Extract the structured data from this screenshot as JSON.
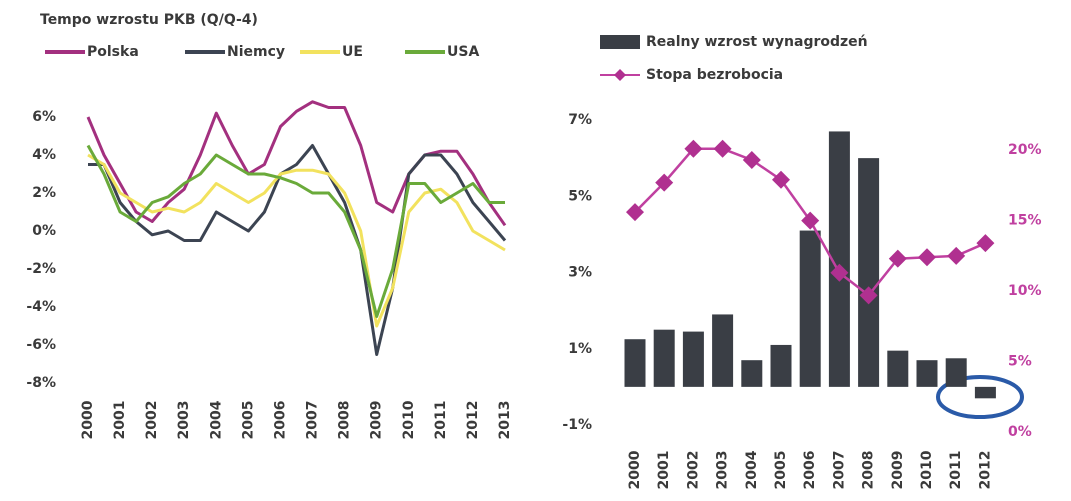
{
  "chart_data": [
    {
      "type": "line",
      "title": "Tempo wzrostu PKB (Q/Q-4)",
      "x": [
        2000,
        2000.5,
        2001,
        2001.5,
        2002,
        2002.5,
        2003,
        2003.5,
        2004,
        2004.5,
        2005,
        2005.5,
        2006,
        2006.5,
        2007,
        2007.5,
        2008,
        2008.5,
        2009,
        2009.5,
        2010,
        2010.5,
        2011,
        2011.5,
        2012,
        2012.5,
        2013
      ],
      "xlim": [
        2000,
        2013
      ],
      "xticks": [
        2000,
        2001,
        2002,
        2003,
        2004,
        2005,
        2006,
        2007,
        2008,
        2009,
        2010,
        2011,
        2012,
        2013
      ],
      "ylim": [
        -8,
        7
      ],
      "yticks": [
        {
          "value": 6,
          "label": "6%"
        },
        {
          "value": 4,
          "label": "4%"
        },
        {
          "value": 2,
          "label": "2%"
        },
        {
          "value": 0,
          "label": "0%"
        },
        {
          "value": -2,
          "label": "-2%"
        },
        {
          "value": -4,
          "label": "-4%"
        },
        {
          "value": -6,
          "label": "-6%"
        },
        {
          "value": -8,
          "label": "-8%"
        }
      ],
      "series": [
        {
          "name": "Polska",
          "color": "#a3307f",
          "values": [
            6,
            4,
            2.5,
            1,
            0.5,
            1.5,
            2.2,
            4,
            6.2,
            4.5,
            3,
            3.5,
            5.5,
            6.3,
            6.8,
            6.5,
            6.5,
            4.5,
            1.5,
            1,
            3,
            4,
            4.2,
            4.2,
            3,
            1.5,
            0.3
          ]
        },
        {
          "name": "Niemcy",
          "color": "#3c4452",
          "values": [
            3.5,
            3.5,
            1.5,
            0.5,
            -0.2,
            0,
            -0.5,
            -0.5,
            1,
            0.5,
            0,
            1,
            3,
            3.5,
            4.5,
            3,
            1.5,
            -1,
            -6.5,
            -3,
            3,
            4,
            4,
            3,
            1.5,
            0.5,
            -0.5
          ]
        },
        {
          "name": "UE",
          "color": "#f2e25e",
          "values": [
            4,
            3.5,
            2,
            1.5,
            1,
            1.2,
            1,
            1.5,
            2.5,
            2,
            1.5,
            2,
            3,
            3.2,
            3.2,
            3,
            2,
            0,
            -5,
            -3,
            1,
            2,
            2.2,
            1.5,
            0,
            -0.5,
            -1
          ]
        },
        {
          "name": "USA",
          "color": "#6aaa3a",
          "values": [
            4.5,
            3,
            1,
            0.5,
            1.5,
            1.8,
            2.5,
            3,
            4,
            3.5,
            3,
            3,
            2.8,
            2.5,
            2,
            2,
            1,
            -1,
            -4.5,
            -2,
            2.5,
            2.5,
            1.5,
            2,
            2.5,
            1.5,
            1.5
          ]
        }
      ]
    },
    {
      "type": "bar",
      "categories": [
        "2000",
        "2001",
        "2002",
        "2003",
        "2004",
        "2005",
        "2006",
        "2007",
        "2008",
        "2009",
        "2010",
        "2011",
        "2012"
      ],
      "ylim": [
        -1,
        7
      ],
      "yticks": [
        {
          "value": 7,
          "label": "7%"
        },
        {
          "value": 5,
          "label": "5%"
        },
        {
          "value": 3,
          "label": "3%"
        },
        {
          "value": 1,
          "label": "1%"
        },
        {
          "value": -1,
          "label": "-1%"
        }
      ],
      "y2lim": [
        0,
        22
      ],
      "y2ticks": [
        {
          "value": 20,
          "label": "20%"
        },
        {
          "value": 15,
          "label": "15%"
        },
        {
          "value": 10,
          "label": "10%"
        },
        {
          "value": 5,
          "label": "5%"
        },
        {
          "value": 0,
          "label": "0%"
        }
      ],
      "series": [
        {
          "name": "Realny wzrost wynagrodzeń",
          "type": "bar",
          "color": "#3a3e45",
          "values": [
            1.25,
            1.5,
            1.45,
            1.9,
            0.7,
            1.1,
            4.1,
            6.7,
            6.0,
            0.95,
            0.7,
            0.75,
            -0.3
          ]
        },
        {
          "name": "Stopa bezrobocia",
          "type": "line",
          "axis": "y2",
          "color": "#c040a0",
          "values": [
            15.6,
            17.7,
            20.1,
            20.1,
            19.3,
            17.9,
            15,
            11.3,
            9.7,
            12.3,
            12.4,
            12.5,
            13.4
          ]
        }
      ]
    }
  ]
}
